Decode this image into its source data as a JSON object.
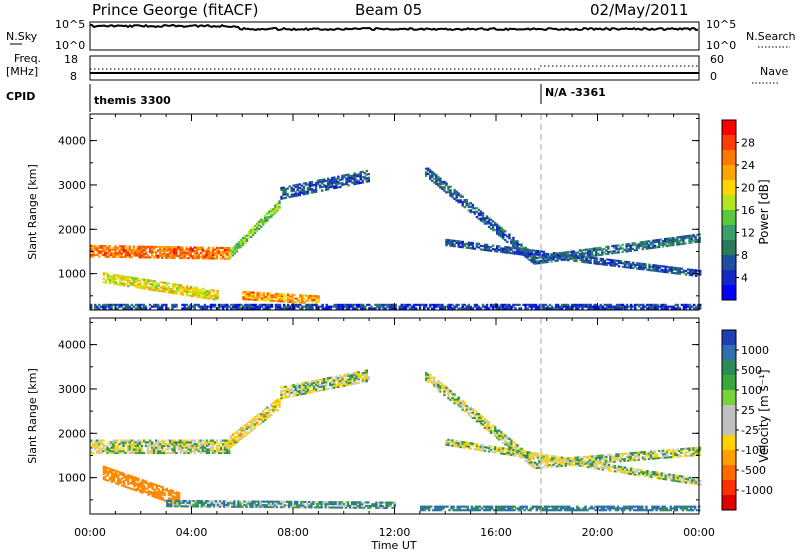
{
  "header": {
    "station": "Prince George (fitACF)",
    "beam": "Beam 05",
    "date": "02/May/2011"
  },
  "top_panels": {
    "nsky_label": "N.Sky",
    "nsky_ticks": [
      "10^5",
      "10^0"
    ],
    "nsearch_label": "N.Search",
    "nsearch_ticks": [
      "10^5",
      "10^0"
    ],
    "freq_label": "Freq.",
    "freq_unit": "[MHz]",
    "freq_ticks": [
      "18",
      "8"
    ],
    "nave_label": "Nave",
    "nave_ticks": [
      "60",
      "0"
    ],
    "cpid_label": "CPID",
    "cpid_entries": [
      "themis 3300",
      "N/A  -3361"
    ]
  },
  "power_colorbar": {
    "label": "Power [dB]",
    "ticks": [
      "28",
      "24",
      "20",
      "16",
      "12",
      "8",
      "4"
    ],
    "colors": [
      "#ff0000",
      "#ff3c00",
      "#ff7800",
      "#ffa500",
      "#ffd700",
      "#b4e61e",
      "#5ac83c",
      "#3c9e6e",
      "#2b7a5a",
      "#1e50a0",
      "#1428c8",
      "#0000ff"
    ]
  },
  "velocity_colorbar": {
    "label": "Velocity [m s⁻¹]",
    "ticks": [
      "1000",
      "500",
      "100",
      "25",
      "-25",
      "-100",
      "-500",
      "-1000"
    ],
    "colors": [
      "#1f3fb4",
      "#2f6fb0",
      "#2f8a5a",
      "#3aa83a",
      "#7ad23a",
      "#c0c0c0",
      "#c0c0c0",
      "#ffd200",
      "#ffa000",
      "#ff6a00",
      "#ff3000",
      "#e00000"
    ]
  },
  "chart_data": [
    {
      "type": "heatmap",
      "ylabel": "Slant Range [km]",
      "xlabel": "Time UT",
      "x_ticks": [
        "00:00",
        "04:00",
        "08:00",
        "12:00",
        "16:00",
        "20:00",
        "00:00"
      ],
      "y_ticks": [
        "1000",
        "2000",
        "3000",
        "4000"
      ],
      "xlim_hours": [
        0,
        24
      ],
      "ylim_km": [
        180,
        4600
      ],
      "colorbar": "Power [dB]",
      "clim": [
        0,
        30
      ],
      "bands": [
        {
          "t": [
            0.0,
            5.5
          ],
          "r0": [
            1500,
            1450
          ],
          "width": 260,
          "value": 24
        },
        {
          "t": [
            5.5,
            7.5
          ],
          "r0": [
            1450,
            2600
          ],
          "width": 200,
          "value": 14
        },
        {
          "t": [
            7.5,
            11.0
          ],
          "r0": [
            2800,
            3200
          ],
          "width": 250,
          "value": 6
        },
        {
          "t": [
            13.2,
            17.5
          ],
          "r0": [
            3300,
            1300
          ],
          "width": 220,
          "value": 7
        },
        {
          "t": [
            17.5,
            24.0
          ],
          "r0": [
            1300,
            1800
          ],
          "width": 180,
          "value": 8
        },
        {
          "t": [
            14.0,
            24.0
          ],
          "r0": [
            1700,
            1000
          ],
          "width": 150,
          "value": 6
        },
        {
          "t": [
            0.5,
            5.0
          ],
          "r0": [
            900,
            500
          ],
          "width": 220,
          "value": 18
        },
        {
          "t": [
            6.0,
            9.0
          ],
          "r0": [
            500,
            400
          ],
          "width": 180,
          "value": 22
        },
        {
          "t": [
            0.0,
            24.0
          ],
          "r0": [
            260,
            260
          ],
          "width": 120,
          "value": 5
        }
      ]
    },
    {
      "type": "heatmap",
      "ylabel": "Slant Range [km]",
      "xlabel": "Time UT",
      "x_ticks": [
        "00:00",
        "04:00",
        "08:00",
        "12:00",
        "16:00",
        "20:00",
        "00:00"
      ],
      "y_ticks": [
        "1000",
        "2000",
        "3000",
        "4000"
      ],
      "xlim_hours": [
        0,
        24
      ],
      "ylim_km": [
        180,
        4600
      ],
      "colorbar": "Velocity [m s⁻¹]",
      "bands": [
        {
          "t": [
            0.0,
            5.5
          ],
          "r0": [
            1700,
            1700
          ],
          "width": 320,
          "value": 0
        },
        {
          "t": [
            5.5,
            7.5
          ],
          "r0": [
            1800,
            2700
          ],
          "width": 250,
          "value": -40
        },
        {
          "t": [
            7.5,
            11.0
          ],
          "r0": [
            2900,
            3300
          ],
          "width": 250,
          "value": 0
        },
        {
          "t": [
            13.2,
            17.5
          ],
          "r0": [
            3300,
            1300
          ],
          "width": 230,
          "value": 0
        },
        {
          "t": [
            17.5,
            24.0
          ],
          "r0": [
            1300,
            1600
          ],
          "width": 200,
          "value": 0
        },
        {
          "t": [
            14.0,
            24.0
          ],
          "r0": [
            1800,
            900
          ],
          "width": 150,
          "value": 0
        },
        {
          "t": [
            0.5,
            3.5
          ],
          "r0": [
            1100,
            500
          ],
          "width": 300,
          "value": -300
        },
        {
          "t": [
            3.0,
            12.0
          ],
          "r0": [
            420,
            380
          ],
          "width": 160,
          "value": 60
        },
        {
          "t": [
            13.0,
            24.0
          ],
          "r0": [
            300,
            300
          ],
          "width": 100,
          "value": 120
        }
      ]
    }
  ]
}
